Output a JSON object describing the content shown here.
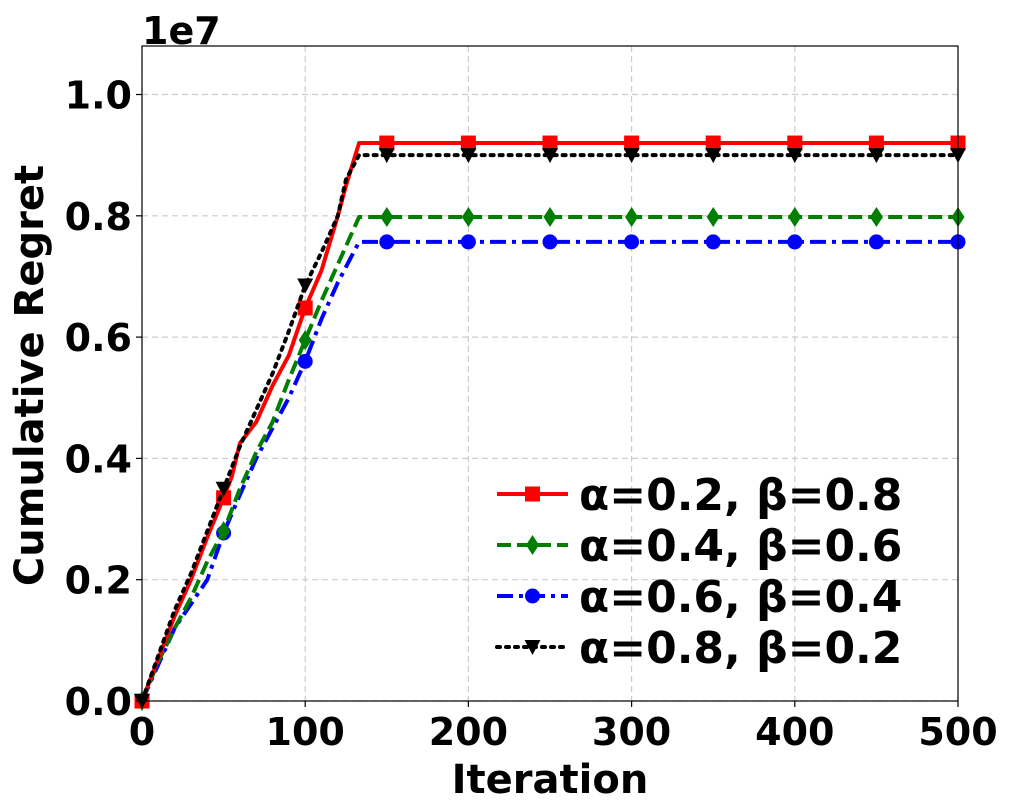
{
  "chart_data": {
    "type": "line",
    "xlabel": "Iteration",
    "ylabel": "Cumulative Regret",
    "y_offset_label": "1e7",
    "xlim": [
      0,
      500
    ],
    "ylim": [
      0,
      1.08
    ],
    "xticks": [
      0,
      100,
      200,
      300,
      400,
      500
    ],
    "xtick_labels": [
      "0",
      "100",
      "200",
      "300",
      "400",
      "500"
    ],
    "yticks": [
      0.0,
      0.2,
      0.4,
      0.6,
      0.8,
      1.0
    ],
    "ytick_labels": [
      "0.0",
      "0.2",
      "0.4",
      "0.6",
      "0.8",
      "1.0"
    ],
    "grid": true,
    "legend_position": "lower-right",
    "series": [
      {
        "name": "α=0.2, β=0.8",
        "color": "#ff0000",
        "linestyle": "solid",
        "marker": "square",
        "x": [
          0,
          10,
          20,
          30,
          40,
          50,
          55,
          60,
          70,
          80,
          90,
          100,
          110,
          120,
          125,
          133,
          150,
          200,
          250,
          300,
          350,
          400,
          450,
          500
        ],
        "y": [
          0,
          0.07,
          0.14,
          0.2,
          0.27,
          0.335,
          0.37,
          0.425,
          0.46,
          0.52,
          0.57,
          0.648,
          0.71,
          0.8,
          0.85,
          0.92,
          0.92,
          0.92,
          0.92,
          0.92,
          0.92,
          0.92,
          0.92,
          0.92
        ]
      },
      {
        "name": "α=0.4, β=0.6",
        "color": "#007f00",
        "linestyle": "dashed",
        "marker": "diamond",
        "x": [
          0,
          10,
          20,
          30,
          40,
          50,
          60,
          70,
          80,
          90,
          100,
          110,
          120,
          133,
          150,
          200,
          250,
          300,
          350,
          400,
          450,
          500
        ],
        "y": [
          0,
          0.065,
          0.12,
          0.17,
          0.23,
          0.28,
          0.35,
          0.41,
          0.46,
          0.53,
          0.595,
          0.66,
          0.72,
          0.798,
          0.798,
          0.798,
          0.798,
          0.798,
          0.798,
          0.798,
          0.798,
          0.798
        ]
      },
      {
        "name": "α=0.6, β=0.4",
        "color": "#0000ff",
        "linestyle": "dashdot",
        "marker": "circle",
        "x": [
          0,
          10,
          20,
          30,
          40,
          50,
          60,
          70,
          80,
          90,
          100,
          110,
          120,
          133,
          150,
          200,
          250,
          300,
          350,
          400,
          450,
          500
        ],
        "y": [
          0,
          0.06,
          0.12,
          0.16,
          0.2,
          0.277,
          0.34,
          0.4,
          0.45,
          0.5,
          0.56,
          0.63,
          0.69,
          0.757,
          0.757,
          0.757,
          0.757,
          0.757,
          0.757,
          0.757,
          0.757,
          0.757
        ]
      },
      {
        "name": "α=0.8, β=0.2",
        "color": "#000000",
        "linestyle": "dotted",
        "marker": "triangle-down",
        "x": [
          0,
          10,
          20,
          30,
          40,
          50,
          60,
          70,
          80,
          90,
          100,
          110,
          120,
          125,
          133,
          150,
          200,
          250,
          300,
          350,
          400,
          450,
          500
        ],
        "y": [
          0,
          0.075,
          0.15,
          0.21,
          0.28,
          0.35,
          0.42,
          0.48,
          0.54,
          0.61,
          0.685,
          0.74,
          0.8,
          0.86,
          0.9,
          0.9,
          0.9,
          0.9,
          0.9,
          0.9,
          0.9,
          0.9,
          0.9
        ]
      }
    ],
    "marker_x": [
      0,
      50,
      100,
      150,
      200,
      250,
      300,
      350,
      400,
      450,
      500
    ]
  }
}
